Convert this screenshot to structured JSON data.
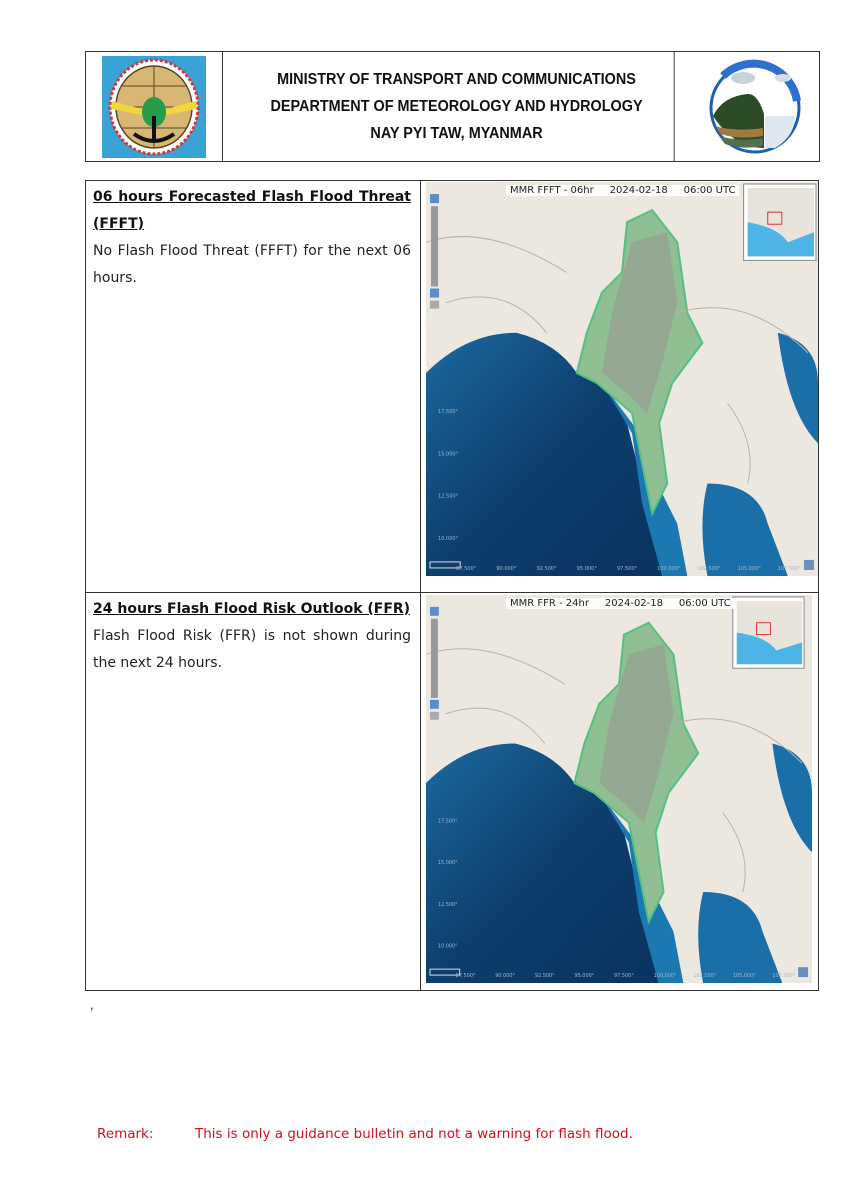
{
  "header": {
    "line1": "MINISTRY OF TRANSPORT AND COMMUNICATIONS",
    "line2": "DEPARTMENT OF METEOROLOGY AND HYDROLOGY",
    "line3": "NAY PYI TAW, MYANMAR",
    "left_logo": "ministry-emblem-icon",
    "right_logo": "water-cycle-icon"
  },
  "sections": [
    {
      "heading": "06 hours Forecasted Flash Flood Threat (FFFT)",
      "body": "No Flash Flood Threat (FFFT) for the next 06 hours.",
      "map": {
        "product": "MMR FFFT - 06hr",
        "date": "2024-02-18",
        "time": "06:00 UTC",
        "lat_labels": [
          "17.500°",
          "15.000°",
          "12.500°",
          "10.000°"
        ],
        "lon_labels": [
          "87.500°",
          "90.000°",
          "92.500°",
          "95.000°",
          "97.500°",
          "100.000°",
          "102.500°",
          "105.000°",
          "107.500°"
        ]
      }
    },
    {
      "heading": "24 hours Flash Flood Risk Outlook (FFR)",
      "body": "Flash Flood Risk (FFR) is not shown during the next 24 hours.",
      "map": {
        "product": "MMR FFR - 24hr",
        "date": "2024-02-18",
        "time": "06:00 UTC",
        "lat_labels": [
          "17.500°",
          "15.000°",
          "12.500°",
          "10.000°"
        ],
        "lon_labels": [
          "87.500°",
          "90.000°",
          "92.500°",
          "95.000°",
          "97.500°",
          "100.000°",
          "102.500°",
          "105.000°",
          "107.500°"
        ]
      }
    }
  ],
  "stray_mark": ",",
  "remark": {
    "label": "Remark:",
    "text": "This is only a guidance bulletin and not a warning for flash flood.",
    "color": "#d0101a"
  }
}
